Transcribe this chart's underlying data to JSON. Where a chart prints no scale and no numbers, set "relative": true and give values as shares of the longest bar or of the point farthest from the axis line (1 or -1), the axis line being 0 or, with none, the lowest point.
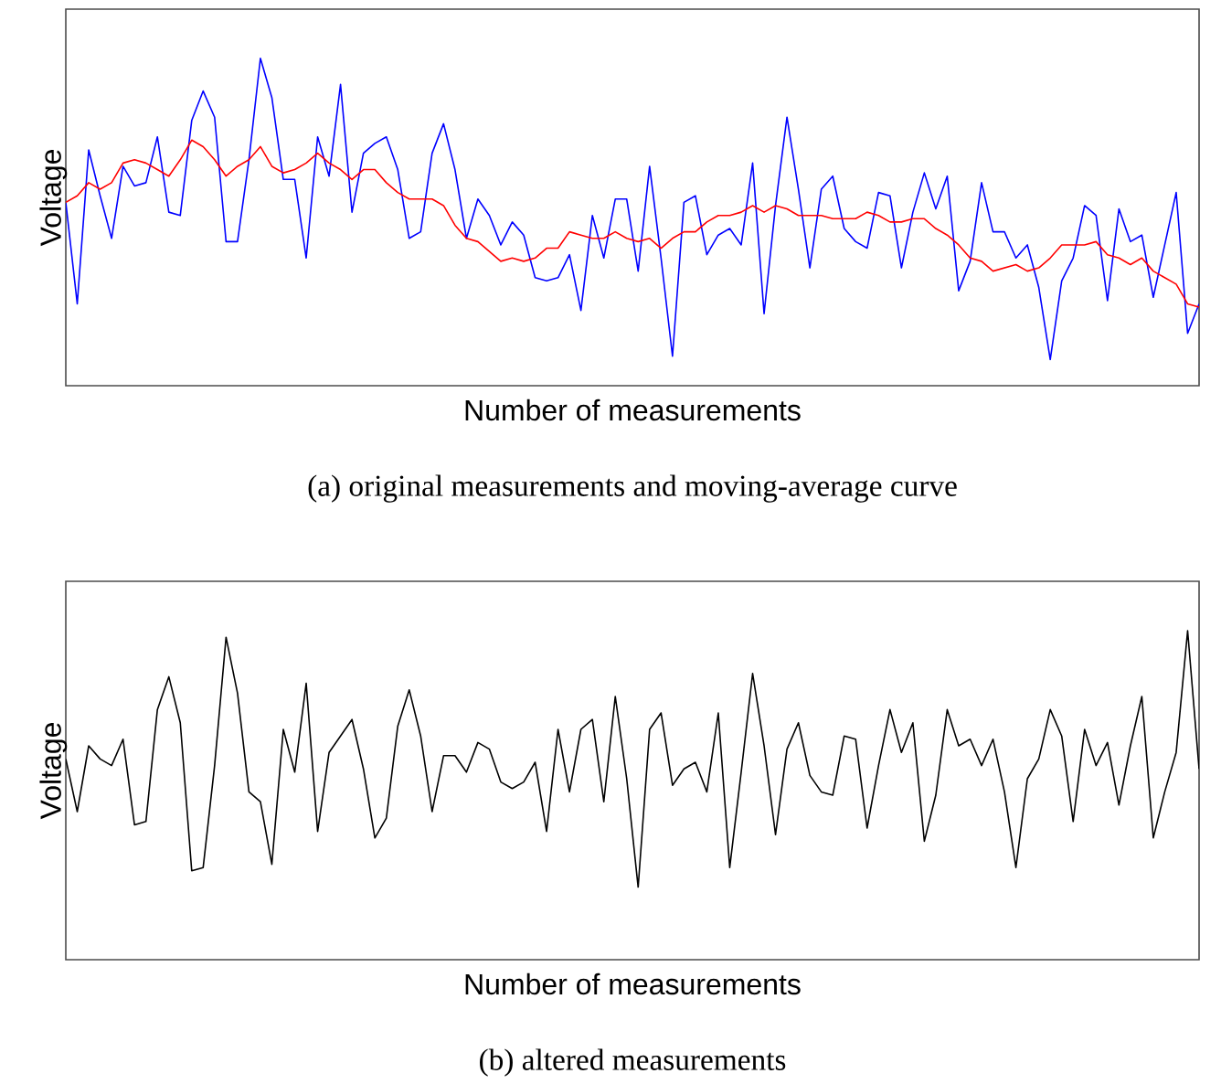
{
  "chart_data": [
    {
      "type": "line",
      "relative": true,
      "title": "(a) original measurements and moving-average curve",
      "xlabel": "Number of measurements",
      "ylabel": "Voltage",
      "categories": [
        null,
        null,
        null,
        null,
        null,
        null,
        null,
        null,
        null,
        null,
        null,
        null,
        null,
        null,
        null,
        null,
        null,
        null,
        null,
        null,
        null,
        null,
        null,
        null,
        null,
        null,
        null,
        null,
        null,
        null,
        null,
        null,
        null,
        null,
        null,
        null,
        null,
        null,
        null,
        null,
        null,
        null,
        null,
        null,
        null,
        null,
        null,
        null,
        null,
        null,
        null,
        null,
        null,
        null,
        null,
        null,
        null,
        null,
        null,
        null,
        null,
        null,
        null,
        null,
        null,
        null,
        null,
        null,
        null,
        null,
        null,
        null,
        null,
        null,
        null,
        null,
        null,
        null,
        null,
        null,
        null,
        null,
        null,
        null,
        null,
        null,
        null,
        null,
        null,
        null,
        null,
        null,
        null,
        null,
        null,
        null,
        null,
        null,
        null,
        null
      ],
      "series": [
        {
          "color": "#0000ff",
          "values": [
            0.56,
            0.25,
            0.72,
            0.58,
            0.45,
            0.67,
            0.61,
            0.62,
            0.76,
            0.53,
            0.52,
            0.81,
            0.9,
            0.82,
            0.44,
            0.44,
            0.69,
            1.0,
            0.88,
            0.63,
            0.63,
            0.39,
            0.76,
            0.64,
            0.92,
            0.53,
            0.71,
            0.74,
            0.76,
            0.66,
            0.45,
            0.47,
            0.71,
            0.8,
            0.66,
            0.45,
            0.57,
            0.52,
            0.43,
            0.5,
            0.46,
            0.33,
            0.32,
            0.33,
            0.4,
            0.23,
            0.52,
            0.39,
            0.57,
            0.57,
            0.35,
            0.67,
            0.39,
            0.09,
            0.56,
            0.58,
            0.4,
            0.46,
            0.48,
            0.43,
            0.68,
            0.22,
            0.55,
            0.82,
            0.6,
            0.36,
            0.6,
            0.64,
            0.48,
            0.44,
            0.42,
            0.59,
            0.58,
            0.36,
            0.53,
            0.65,
            0.54,
            0.64,
            0.29,
            0.38,
            0.62,
            0.47,
            0.47,
            0.39,
            0.43,
            0.3,
            0.08,
            0.32,
            0.39,
            0.55,
            0.52,
            0.26,
            0.54,
            0.44,
            0.46,
            0.27,
            0.43,
            0.59,
            0.16,
            0.25
          ]
        },
        {
          "color": "#ff0000",
          "values": [
            0.56,
            0.58,
            0.62,
            0.6,
            0.62,
            0.68,
            0.69,
            0.68,
            0.66,
            0.64,
            0.69,
            0.75,
            0.73,
            0.69,
            0.64,
            0.67,
            0.69,
            0.73,
            0.67,
            0.65,
            0.66,
            0.68,
            0.71,
            0.68,
            0.66,
            0.63,
            0.66,
            0.66,
            0.62,
            0.59,
            0.57,
            0.57,
            0.57,
            0.55,
            0.49,
            0.45,
            0.44,
            0.41,
            0.38,
            0.39,
            0.38,
            0.39,
            0.42,
            0.42,
            0.47,
            0.46,
            0.45,
            0.45,
            0.47,
            0.45,
            0.44,
            0.45,
            0.42,
            0.45,
            0.47,
            0.47,
            0.5,
            0.52,
            0.52,
            0.53,
            0.55,
            0.53,
            0.55,
            0.54,
            0.52,
            0.52,
            0.52,
            0.51,
            0.51,
            0.51,
            0.53,
            0.52,
            0.5,
            0.5,
            0.51,
            0.51,
            0.48,
            0.46,
            0.43,
            0.39,
            0.38,
            0.35,
            0.36,
            0.37,
            0.35,
            0.36,
            0.39,
            0.43,
            0.43,
            0.43,
            0.44,
            0.4,
            0.39,
            0.37,
            0.39,
            0.35,
            0.33,
            0.31,
            0.25,
            0.24
          ]
        }
      ]
    },
    {
      "type": "line",
      "relative": true,
      "title": "(b) altered measurements",
      "xlabel": "Number of measurements",
      "ylabel": "Voltage",
      "categories": [
        null,
        null,
        null,
        null,
        null,
        null,
        null,
        null,
        null,
        null,
        null,
        null,
        null,
        null,
        null,
        null,
        null,
        null,
        null,
        null,
        null,
        null,
        null,
        null,
        null,
        null,
        null,
        null,
        null,
        null,
        null,
        null,
        null,
        null,
        null,
        null,
        null,
        null,
        null,
        null,
        null,
        null,
        null,
        null,
        null,
        null,
        null,
        null,
        null,
        null,
        null,
        null,
        null,
        null,
        null,
        null,
        null,
        null,
        null,
        null,
        null,
        null,
        null,
        null,
        null,
        null,
        null,
        null,
        null,
        null,
        null,
        null,
        null,
        null,
        null,
        null,
        null,
        null,
        null,
        null,
        null,
        null,
        null,
        null,
        null,
        null,
        null,
        null,
        null,
        null,
        null,
        null,
        null,
        null,
        null,
        null,
        null,
        null,
        null,
        null
      ],
      "series": [
        {
          "color": "#000000",
          "values": [
            0.61,
            0.45,
            0.65,
            0.61,
            0.59,
            0.67,
            0.41,
            0.42,
            0.76,
            0.86,
            0.72,
            0.27,
            0.28,
            0.59,
            0.98,
            0.81,
            0.51,
            0.48,
            0.29,
            0.7,
            0.57,
            0.84,
            0.39,
            0.63,
            0.68,
            0.73,
            0.58,
            0.37,
            0.43,
            0.71,
            0.82,
            0.68,
            0.45,
            0.62,
            0.62,
            0.57,
            0.66,
            0.64,
            0.54,
            0.52,
            0.54,
            0.6,
            0.39,
            0.7,
            0.51,
            0.7,
            0.73,
            0.48,
            0.8,
            0.55,
            0.22,
            0.7,
            0.75,
            0.53,
            0.58,
            0.6,
            0.51,
            0.75,
            0.28,
            0.57,
            0.87,
            0.65,
            0.38,
            0.64,
            0.72,
            0.56,
            0.51,
            0.5,
            0.68,
            0.67,
            0.4,
            0.59,
            0.76,
            0.63,
            0.72,
            0.36,
            0.5,
            0.76,
            0.65,
            0.67,
            0.59,
            0.67,
            0.51,
            0.28,
            0.55,
            0.61,
            0.76,
            0.68,
            0.42,
            0.7,
            0.59,
            0.66,
            0.47,
            0.65,
            0.8,
            0.37,
            0.51,
            0.63,
            1.0,
            0.58
          ]
        }
      ]
    }
  ]
}
